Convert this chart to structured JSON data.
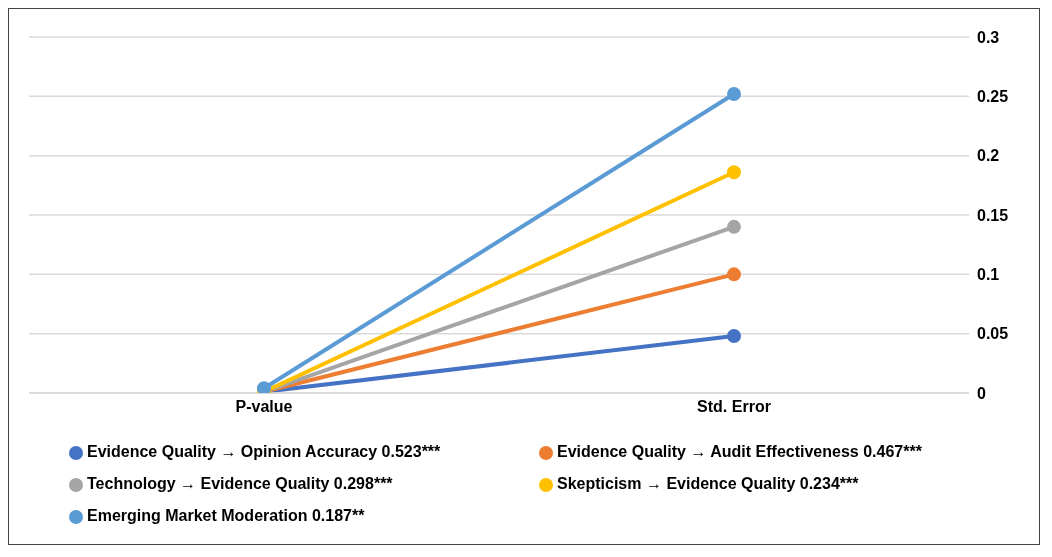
{
  "chart_data": {
    "type": "line",
    "categories": [
      "P-value",
      "Std. Error"
    ],
    "series": [
      {
        "name": "Evidence Quality → Opinion Accuracy 0.523***",
        "color": "#4472c4",
        "values": [
          0.001,
          0.048
        ]
      },
      {
        "name": "Evidence Quality → Audit Effectiveness 0.467***",
        "color": "#ed7d31",
        "values": [
          0.001,
          0.1
        ]
      },
      {
        "name": "Technology → Evidence Quality 0.298***",
        "color": "#a5a5a5",
        "values": [
          0.001,
          0.14
        ]
      },
      {
        "name": "Skepticism → Evidence Quality 0.234***",
        "color": "#ffc000",
        "values": [
          0.001,
          0.186
        ]
      },
      {
        "name": "Emerging Market Moderation 0.187**",
        "color": "#5b9bd5",
        "values": [
          0.004,
          0.252
        ]
      }
    ],
    "ylim": [
      0,
      0.3
    ],
    "yticks": [
      0,
      0.05,
      0.1,
      0.15,
      0.2,
      0.25,
      0.3
    ],
    "grid": "y",
    "legend": "bottom",
    "marker": "circle",
    "line_style": "solid"
  }
}
